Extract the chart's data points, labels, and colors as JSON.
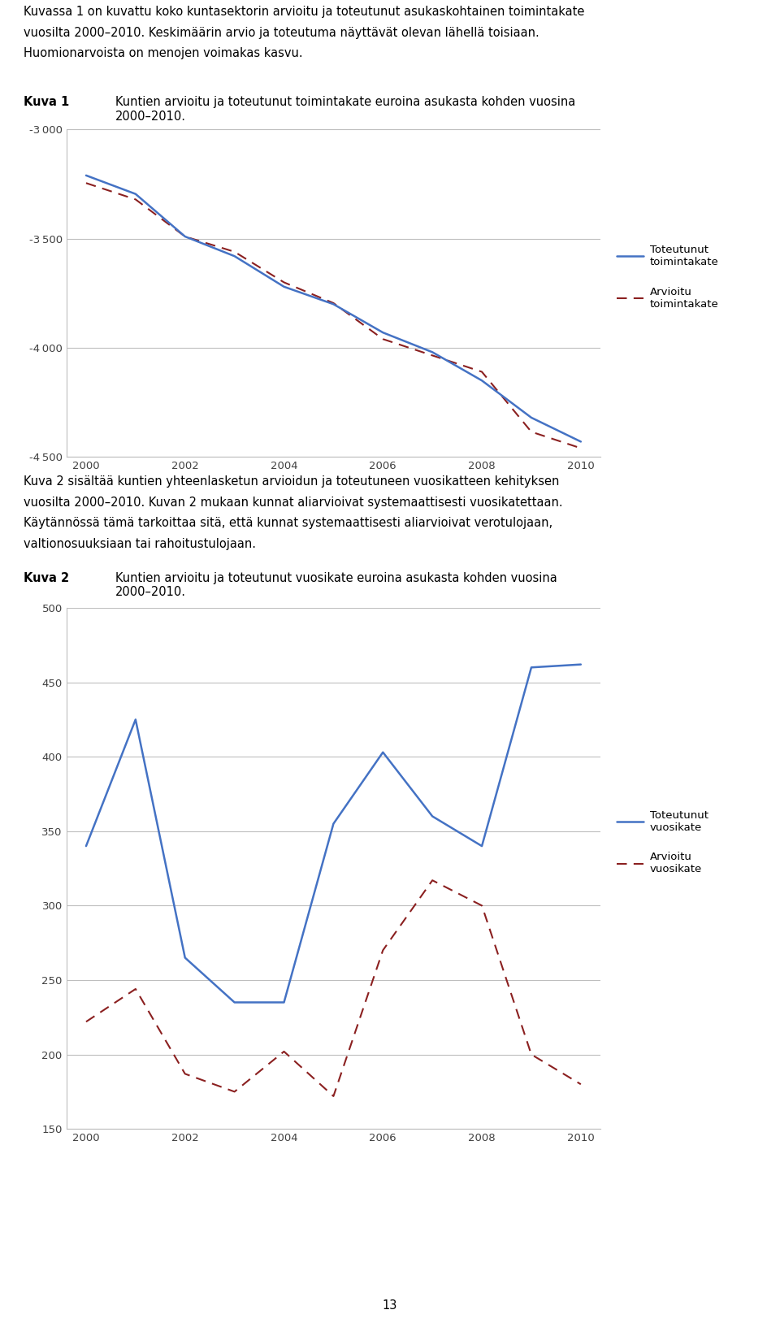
{
  "years": [
    2000,
    2001,
    2002,
    2003,
    2004,
    2005,
    2006,
    2007,
    2008,
    2009,
    2010
  ],
  "chart1": {
    "toteutunut": [
      -3210,
      -3295,
      -3490,
      -3580,
      -3720,
      -3800,
      -3930,
      -4020,
      -4150,
      -4320,
      -4430
    ],
    "arvioitu": [
      -3245,
      -3320,
      -3490,
      -3560,
      -3700,
      -3795,
      -3960,
      -4035,
      -4110,
      -4385,
      -4460
    ],
    "ylim": [
      -4500,
      -3000
    ],
    "yticks": [
      -4500,
      -4000,
      -3500,
      -3000
    ],
    "legend_toteutunut": "Toteutunut\ntoimintakate",
    "legend_arvioitu": "Arvioitu\ntoimintakate"
  },
  "chart2": {
    "toteutunut": [
      340,
      425,
      265,
      235,
      235,
      355,
      403,
      360,
      340,
      460,
      462
    ],
    "arvioitu": [
      222,
      244,
      187,
      175,
      202,
      172,
      270,
      317,
      300,
      200,
      180
    ],
    "ylim": [
      150,
      500
    ],
    "yticks": [
      150,
      200,
      250,
      300,
      350,
      400,
      450,
      500
    ],
    "legend_toteutunut": "Toteutunut\nvuosikate",
    "legend_arvioitu": "Arvioitu\nvuosikate"
  },
  "text_block1_lines": [
    "Kuvassa 1 on kuvattu koko kuntasektorin arvioitu ja toteutunut asukaskohtainen toimintakate",
    "vuosilta 2000–2010. Keskimäärin arvio ja toteutuma näyttävät olevan lähellä toisiaan.",
    "Huomionarvoista on menojen voimakas kasvu."
  ],
  "kuva1_label": "Kuva 1",
  "kuva1_title": "Kuntien arvioitu ja toteutunut toimintakate euroina asukasta kohden vuosina\n2000–2010.",
  "text_block2_lines": [
    "Kuva 2 sisältää kuntien yhteenlasketun arvioidun ja toteutuneen vuosikatteen kehityksen",
    "vuosilta 2000–2010. Kuvan 2 mukaan kunnat aliarvioivat systemaattisesti vuosikatettaan.",
    "Käytännössä tämä tarkoittaa sitä, että kunnat systemaattisesti aliarvioivat verotulojaan,",
    "valtionosuuksiaan tai rahoitustulojaan."
  ],
  "kuva2_label": "Kuva 2",
  "kuva2_title": "Kuntien arvioitu ja toteutunut vuosikate euroina asukasta kohden vuosina\n2000–2010.",
  "page_number": "13",
  "line_color_toteutunut": "#4472C4",
  "line_color_arvioitu": "#8B2020",
  "bg_color": "#FFFFFF",
  "grid_color": "#BEBEBE",
  "tick_label_color": "#404040",
  "font_size_body": 10.5,
  "font_size_tick": 9.5
}
